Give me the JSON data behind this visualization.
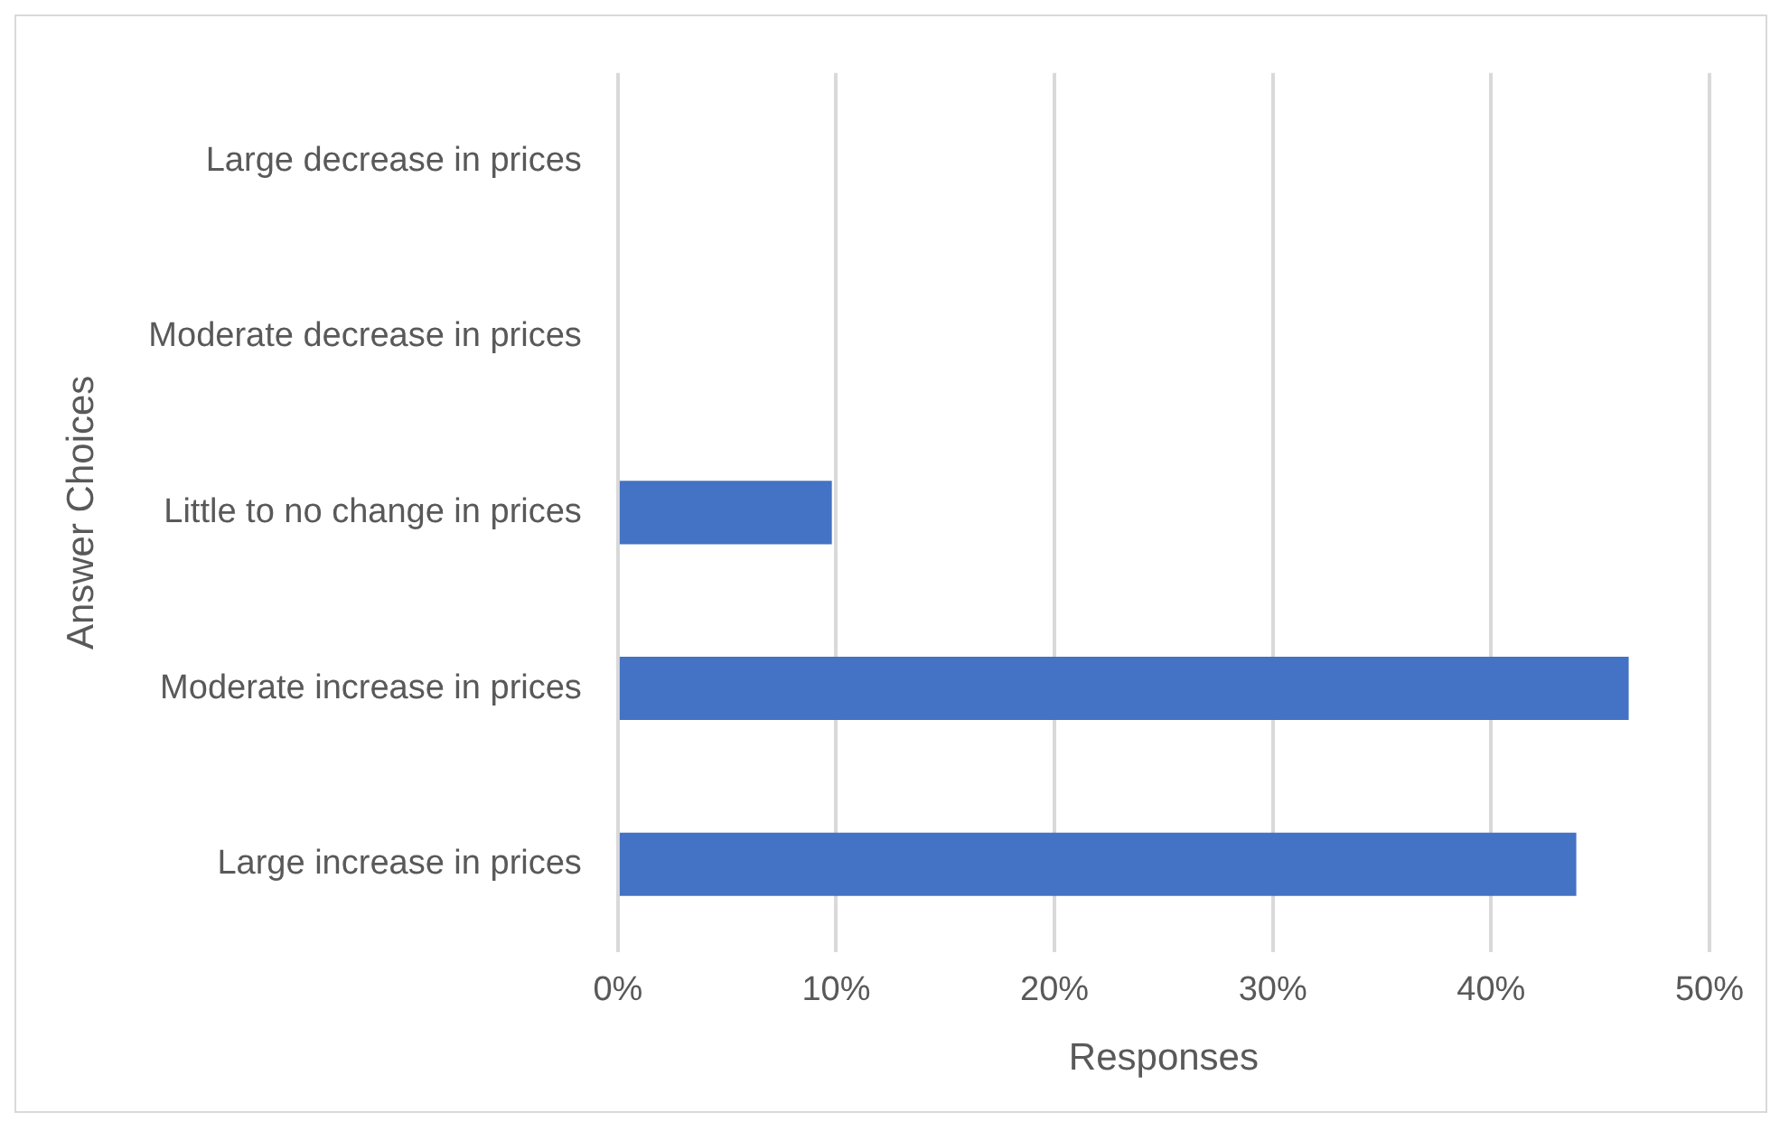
{
  "chart_data": {
    "type": "bar",
    "orientation": "horizontal",
    "xlabel": "Responses",
    "ylabel": "Answer Choices",
    "categories": [
      "Large decrease in prices",
      "Moderate decrease in prices",
      "Little to no change in prices",
      "Moderate increase in prices",
      "Large increase in prices"
    ],
    "values": [
      0,
      0,
      9.8,
      46.3,
      43.9
    ],
    "color": "#4472c4",
    "xlim": [
      0,
      50
    ],
    "xticks": [
      {
        "value": 0,
        "label": "0%"
      },
      {
        "value": 10,
        "label": "10%"
      },
      {
        "value": 20,
        "label": "20%"
      },
      {
        "value": 30,
        "label": "30%"
      },
      {
        "value": 40,
        "label": "40%"
      },
      {
        "value": 50,
        "label": "50%"
      }
    ],
    "grid": "x",
    "legend": false
  }
}
